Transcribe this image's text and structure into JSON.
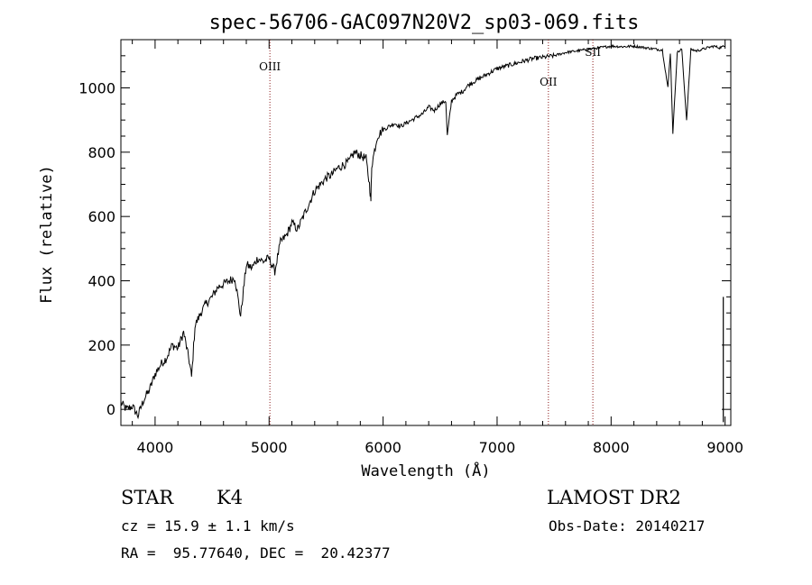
{
  "chart_data": {
    "type": "line",
    "title": "spec-56706-GAC097N20V2_sp03-069.fits",
    "xlabel": "Wavelength (Å)",
    "ylabel": "Flux (relative)",
    "xlim": [
      3700,
      9050
    ],
    "ylim": [
      -50,
      1150
    ],
    "xticks": [
      4000,
      5000,
      6000,
      7000,
      8000,
      9000
    ],
    "yticks": [
      0,
      200,
      400,
      600,
      800,
      1000
    ],
    "grid": false,
    "series": [
      {
        "x": [
          3700,
          3750,
          3800,
          3850,
          3900,
          3950,
          4000,
          4050,
          4100,
          4150,
          4200,
          4250,
          4300,
          4320,
          4350,
          4400,
          4450,
          4500,
          4550,
          4600,
          4650,
          4700,
          4750,
          4800,
          4850,
          4900,
          4950,
          5000,
          5050,
          5100,
          5150,
          5200,
          5250,
          5300,
          5350,
          5400,
          5450,
          5500,
          5550,
          5600,
          5650,
          5700,
          5750,
          5800,
          5850,
          5880,
          5893,
          5900,
          5950,
          6000,
          6050,
          6100,
          6150,
          6200,
          6250,
          6300,
          6350,
          6400,
          6450,
          6500,
          6550,
          6563,
          6600,
          6650,
          6700,
          6750,
          6800,
          6850,
          6900,
          6950,
          7000,
          7100,
          7200,
          7300,
          7400,
          7500,
          7600,
          7700,
          7800,
          7900,
          8000,
          8100,
          8200,
          8300,
          8400,
          8450,
          8498,
          8520,
          8542,
          8580,
          8620,
          8662,
          8700,
          8750,
          8800,
          8850,
          8900,
          8950,
          9000
        ],
        "y": [
          20,
          0,
          10,
          -20,
          30,
          60,
          110,
          140,
          160,
          200,
          190,
          240,
          150,
          100,
          260,
          300,
          330,
          350,
          380,
          390,
          400,
          410,
          290,
          450,
          440,
          470,
          460,
          470,
          430,
          520,
          540,
          580,
          560,
          600,
          640,
          680,
          700,
          720,
          730,
          750,
          760,
          770,
          800,
          790,
          780,
          700,
          650,
          760,
          850,
          870,
          880,
          890,
          880,
          890,
          900,
          910,
          920,
          940,
          930,
          950,
          960,
          850,
          960,
          980,
          990,
          1010,
          1020,
          1030,
          1040,
          1050,
          1060,
          1070,
          1080,
          1090,
          1095,
          1100,
          1110,
          1115,
          1120,
          1125,
          1130,
          1128,
          1130,
          1125,
          1120,
          1118,
          1000,
          1110,
          860,
          1110,
          1120,
          900,
          1120,
          1115,
          1120,
          1125,
          1130,
          1125,
          1130
        ]
      }
    ],
    "lines": [
      {
        "label": "OIII",
        "x": 5007
      },
      {
        "label": "OII",
        "x": 7450
      },
      {
        "label": "SII",
        "x": 7840
      }
    ]
  },
  "info": {
    "object_type": "STAR",
    "subclass": "K4",
    "survey": "LAMOST DR2",
    "cz": "cz = 15.9 ± 1.1 km/s",
    "obs_date": "Obs-Date: 20140217",
    "coords": "RA =  95.77640, DEC =  20.42377"
  }
}
